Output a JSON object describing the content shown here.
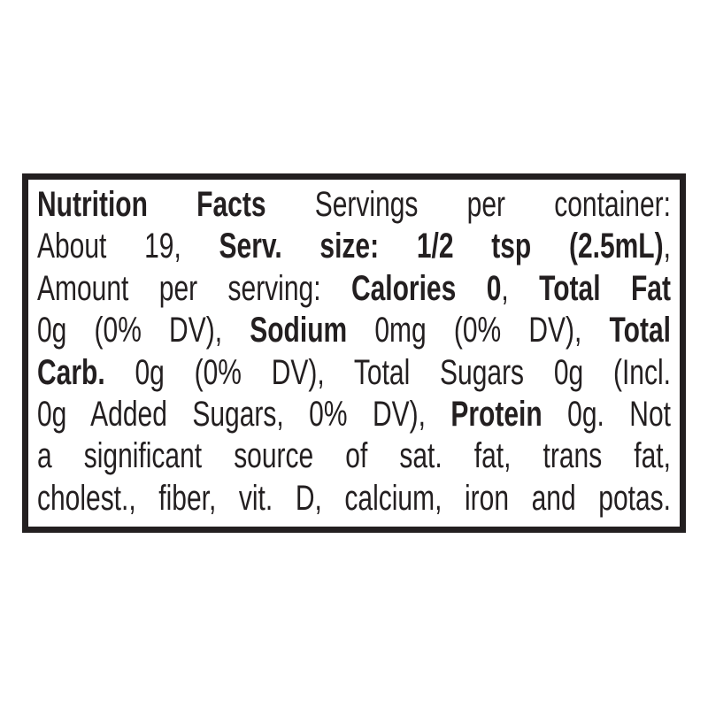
{
  "colors": {
    "ink": "#231f20",
    "background": "#ffffff",
    "border": "#231f20"
  },
  "label": {
    "full_text": "Nutrition Facts Servings per container: About 19, Serv. size: 1/2 tsp (2.5mL), Amount per serving: Calories 0, Total Fat 0g (0% DV), Sodium 0mg (0% DV), Total Carb. 0g (0% DV), Total Sugars 0g (Incl. 0g Added Sugars, 0% DV), Protein 0g. Not a significant source of sat. fat, trans fat, cholest., fiber, vit. D, calcium, iron and potas.",
    "lines": [
      {
        "segments": [
          {
            "text": "Nutrition Facts",
            "bold": true
          },
          {
            "text": " Servings per container:",
            "bold": false
          }
        ]
      },
      {
        "segments": [
          {
            "text": "About 19, ",
            "bold": false
          },
          {
            "text": "Serv. size: 1/2 tsp (2.5mL)",
            "bold": true
          },
          {
            "text": ",",
            "bold": false
          }
        ]
      },
      {
        "segments": [
          {
            "text": "Amount per serving: ",
            "bold": false
          },
          {
            "text": "Calories 0",
            "bold": true
          },
          {
            "text": ", ",
            "bold": false
          },
          {
            "text": "Total Fat",
            "bold": true
          }
        ]
      },
      {
        "segments": [
          {
            "text": "0g (0% DV), ",
            "bold": false
          },
          {
            "text": "Sodium",
            "bold": true
          },
          {
            "text": " 0mg (0% DV), ",
            "bold": false
          },
          {
            "text": "Total",
            "bold": true
          }
        ]
      },
      {
        "segments": [
          {
            "text": "Carb.",
            "bold": true
          },
          {
            "text": " 0g (0% DV), Total Sugars 0g (Incl.",
            "bold": false
          }
        ]
      },
      {
        "segments": [
          {
            "text": "0g Added Sugars, 0% DV), ",
            "bold": false
          },
          {
            "text": "Protein",
            "bold": true
          },
          {
            "text": " 0g. Not",
            "bold": false
          }
        ]
      },
      {
        "segments": [
          {
            "text": "a significant source of sat. fat, trans fat,",
            "bold": false
          }
        ]
      },
      {
        "segments": [
          {
            "text": "cholest., fiber, vit. D, calcium, iron and potas.",
            "bold": false
          }
        ]
      }
    ],
    "nutrition_values": {
      "servings_per_container": "About 19",
      "serving_size": "1/2 tsp (2.5mL)",
      "calories": "0",
      "total_fat": "0g (0% DV)",
      "sodium": "0mg (0% DV)",
      "total_carb": "0g (0% DV)",
      "total_sugars": "0g",
      "added_sugars": "0g (0% DV)",
      "protein": "0g",
      "not_significant_source_of": "sat. fat, trans fat, cholest., fiber, vit. D, calcium, iron and potas."
    }
  }
}
